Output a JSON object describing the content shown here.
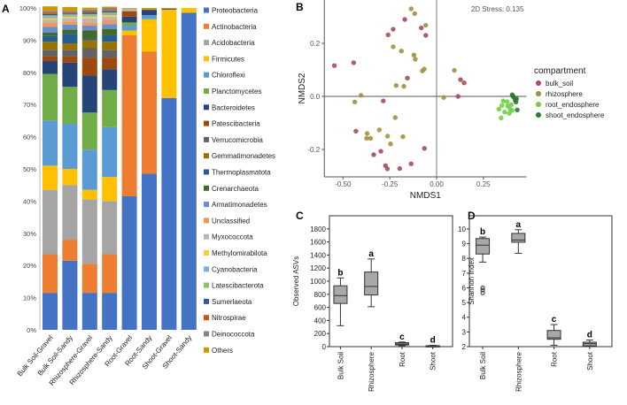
{
  "panel_labels": [
    "A",
    "B",
    "C",
    "D"
  ],
  "chart_data": [
    {
      "type": "bar",
      "stacked": true,
      "panel": "A",
      "ylim": [
        0,
        100
      ],
      "yticks": [
        "0%",
        "10%",
        "20%",
        "30%",
        "40%",
        "50%",
        "60%",
        "70%",
        "80%",
        "90%",
        "100%"
      ],
      "categories": [
        "Bulk Soil-Gravel",
        "Bulk Soil-Sandy",
        "Rhizosphere-Gravel",
        "Rhizosphere-Sandy",
        "Root-Gravel",
        "Root-Sandy",
        "Shoot-Gravel",
        "Shoot-Sandy"
      ],
      "legend_position": "right",
      "series": [
        {
          "name": "Proteobacteria",
          "color": "#4472C4",
          "values": [
            11.5,
            21.5,
            11.5,
            11.5,
            41.5,
            48.5,
            72,
            98.5
          ]
        },
        {
          "name": "Actinobacteria",
          "color": "#ED7D31",
          "values": [
            12,
            6.5,
            9,
            12,
            50,
            38,
            0,
            0
          ]
        },
        {
          "name": "Acidobacteria",
          "color": "#A5A5A5",
          "values": [
            20,
            17,
            20,
            16.5,
            0,
            0,
            0,
            0
          ]
        },
        {
          "name": "Firmicutes",
          "color": "#FFC000",
          "values": [
            7.5,
            5,
            3,
            7.5,
            1.5,
            10,
            27.5,
            1.5
          ]
        },
        {
          "name": "Chloroflexi",
          "color": "#5B9BD5",
          "values": [
            14,
            14,
            12.5,
            15.5,
            1.5,
            1.3,
            0,
            0
          ]
        },
        {
          "name": "Planctomycetes",
          "color": "#70AD47",
          "values": [
            14.5,
            11.5,
            11.5,
            11.5,
            1,
            0,
            0,
            0
          ]
        },
        {
          "name": "Bacteroidetes",
          "color": "#264478",
          "values": [
            4,
            7.5,
            11.5,
            6.5,
            1.8,
            1.5,
            0.3,
            0
          ]
        },
        {
          "name": "Patescibacteria",
          "color": "#9E480E",
          "values": [
            1.5,
            2,
            5.5,
            3.5,
            1.7,
            0.2,
            0,
            0
          ]
        },
        {
          "name": "Verrucomicrobia",
          "color": "#636363",
          "values": [
            2,
            2,
            3,
            2.5,
            0,
            0,
            0,
            0
          ]
        },
        {
          "name": "Gemmatimonadetes",
          "color": "#997300",
          "values": [
            2.5,
            2,
            2.5,
            2.5,
            0,
            0,
            0,
            0
          ]
        },
        {
          "name": "Thermoplasmatota",
          "color": "#255E91",
          "values": [
            1.8,
            3,
            0.5,
            2,
            0,
            0,
            0,
            0
          ]
        },
        {
          "name": "Crenarchaeota",
          "color": "#43682B",
          "values": [
            1,
            1.3,
            2.5,
            2,
            0,
            0,
            0,
            0
          ]
        },
        {
          "name": "Armatimonadetes",
          "color": "#698ED0",
          "values": [
            1.8,
            1.5,
            1.5,
            1.5,
            0,
            0,
            0,
            0
          ]
        },
        {
          "name": "Unclassified",
          "color": "#F1975A",
          "values": [
            1.4,
            1,
            1,
            1.3,
            0,
            0,
            0,
            0
          ]
        },
        {
          "name": "Myxococcota",
          "color": "#B7B7B7",
          "values": [
            0.8,
            1,
            1.3,
            1,
            0.8,
            0,
            0,
            0
          ]
        },
        {
          "name": "Methylomirabilota",
          "color": "#FFCD33",
          "values": [
            0.5,
            0.5,
            0.5,
            0.5,
            0,
            0,
            0,
            0
          ]
        },
        {
          "name": "Cyanobacteria",
          "color": "#7CAFDD",
          "values": [
            0.5,
            0.4,
            0.4,
            0.4,
            0,
            0,
            0,
            0
          ]
        },
        {
          "name": "Latescibacterota",
          "color": "#8CC168",
          "values": [
            0.4,
            0.3,
            0.4,
            0.4,
            0,
            0,
            0,
            0
          ]
        },
        {
          "name": "Sumerlaeota",
          "color": "#335AA1",
          "values": [
            0.4,
            0.3,
            0.4,
            0.4,
            0,
            0,
            0,
            0
          ]
        },
        {
          "name": "Nitrospirae",
          "color": "#C65911",
          "values": [
            0.4,
            0.3,
            0.4,
            0.4,
            0,
            0,
            0,
            0
          ]
        },
        {
          "name": "Deinococcota",
          "color": "#848484",
          "values": [
            0.6,
            0.5,
            0.6,
            0.6,
            0,
            0,
            0,
            0
          ]
        },
        {
          "name": "Others",
          "color": "#CC9A00",
          "values": [
            1.4,
            1.2,
            0.6,
            0.4,
            0.2,
            0.5,
            0.2,
            0
          ]
        }
      ]
    },
    {
      "type": "scatter",
      "panel": "B",
      "xlabel": "NMDS1",
      "ylabel": "NMDS2",
      "xlim": [
        -0.6,
        0.48
      ],
      "ylim": [
        -0.3,
        0.35
      ],
      "xticks": [
        -0.5,
        -0.25,
        0.0,
        0.25
      ],
      "xtick_labels": [
        "-0.50",
        "-0.25",
        "0.00",
        "0.25"
      ],
      "yticks": [
        -0.2,
        0.0,
        0.2
      ],
      "ytick_labels": [
        "-0.2",
        "0.0",
        "0.2"
      ],
      "annotation": "2D Stress: 0.135",
      "legend_title": "compartment",
      "legend_position": "right",
      "series": [
        {
          "name": "bulk_soil",
          "color": "#A84B5A",
          "points": [
            [
              -0.546,
              0.116
            ],
            [
              -0.443,
              0.127
            ],
            [
              -0.17,
              0.29
            ],
            [
              -0.232,
              0.253
            ],
            [
              -0.259,
              0.232
            ],
            [
              -0.082,
              0.258
            ],
            [
              -0.058,
              0.23
            ],
            [
              -0.156,
              0.069
            ],
            [
              0.128,
              0.063
            ],
            [
              0.147,
              0.051
            ],
            [
              0.115,
              0.0
            ],
            [
              -0.285,
              -0.017
            ],
            [
              -0.431,
              -0.131
            ],
            [
              -0.336,
              -0.22
            ],
            [
              -0.298,
              -0.207
            ],
            [
              -0.273,
              -0.261
            ],
            [
              -0.263,
              -0.273
            ],
            [
              -0.197,
              -0.272
            ],
            [
              -0.136,
              -0.254
            ],
            [
              -0.065,
              -0.196
            ]
          ]
        },
        {
          "name": "rhizosphere",
          "color": "#A39040",
          "points": [
            [
              -0.136,
              0.33
            ],
            [
              -0.117,
              0.312
            ],
            [
              -0.058,
              0.268
            ],
            [
              -0.232,
              0.187
            ],
            [
              -0.188,
              0.171
            ],
            [
              -0.121,
              0.156
            ],
            [
              -0.114,
              0.14
            ],
            [
              -0.076,
              0.096
            ],
            [
              -0.066,
              0.103
            ],
            [
              0.095,
              0.098
            ],
            [
              -0.216,
              0.041
            ],
            [
              -0.175,
              0.038
            ],
            [
              -0.404,
              0.004
            ],
            [
              -0.437,
              -0.021
            ],
            [
              0.038,
              -0.004
            ],
            [
              -0.221,
              -0.08
            ],
            [
              -0.306,
              -0.126
            ],
            [
              -0.371,
              -0.14
            ],
            [
              -0.353,
              -0.158
            ],
            [
              -0.374,
              -0.158
            ],
            [
              -0.262,
              -0.15
            ],
            [
              -0.18,
              -0.152
            ],
            [
              -0.246,
              -0.179
            ]
          ]
        },
        {
          "name": "root_endosphere",
          "color": "#6CD240",
          "points": [
            [
              0.333,
              -0.048
            ],
            [
              0.349,
              -0.034
            ],
            [
              0.364,
              -0.059
            ],
            [
              0.345,
              -0.081
            ],
            [
              0.38,
              -0.037
            ],
            [
              0.393,
              -0.048
            ],
            [
              0.388,
              -0.064
            ],
            [
              0.399,
              -0.031
            ],
            [
              0.377,
              -0.02
            ],
            [
              0.356,
              -0.017
            ],
            [
              0.404,
              -0.053
            ]
          ]
        },
        {
          "name": "shoot_endosphere",
          "color": "#2E7A2E",
          "points": [
            [
              0.404,
              0.006
            ],
            [
              0.412,
              -0.003
            ],
            [
              0.42,
              -0.014
            ],
            [
              0.424,
              -0.021
            ],
            [
              0.427,
              -0.009
            ],
            [
              0.408,
              0.001
            ],
            [
              0.431,
              -0.051
            ]
          ]
        }
      ]
    },
    {
      "type": "box",
      "panel": "C",
      "ylabel": "Observed ASVs",
      "ylim": [
        0,
        2000
      ],
      "yticks": [
        0,
        200,
        400,
        600,
        800,
        1000,
        1200,
        1400,
        1600,
        1800
      ],
      "categories": [
        "Bulk Soil",
        "Rhizosphere",
        "Root",
        "Shoot"
      ],
      "boxes": [
        {
          "min": 320,
          "q1": 660,
          "median": 780,
          "q3": 930,
          "max": 1050,
          "letter": "b"
        },
        {
          "min": 610,
          "q1": 790,
          "median": 920,
          "q3": 1140,
          "max": 1340,
          "letter": "a"
        },
        {
          "min": 15,
          "q1": 25,
          "median": 40,
          "q3": 60,
          "max": 70,
          "letter": "c"
        },
        {
          "min": 0,
          "q1": 5,
          "median": 10,
          "q3": 15,
          "max": 20,
          "letter": "d"
        }
      ]
    },
    {
      "type": "box",
      "panel": "D",
      "ylabel": "Shannon Index",
      "ylim": [
        2,
        10.9
      ],
      "yticks": [
        2,
        3,
        4,
        5,
        6,
        7,
        8,
        9,
        10
      ],
      "categories": [
        "Bulk Soil",
        "Rhizosphere",
        "Root",
        "Shoot"
      ],
      "boxes": [
        {
          "min": 7.75,
          "q1": 8.3,
          "median": 8.9,
          "q3": 9.35,
          "max": 9.45,
          "letter": "b",
          "outliers": [
            5.65,
            5.85,
            6.0
          ]
        },
        {
          "min": 8.35,
          "q1": 9.1,
          "median": 9.25,
          "q3": 9.7,
          "max": 9.95,
          "letter": "a"
        },
        {
          "min": 2.1,
          "q1": 2.5,
          "median": 2.6,
          "q3": 3.1,
          "max": 3.5,
          "letter": "c"
        },
        {
          "min": 2.0,
          "q1": 2.05,
          "median": 2.2,
          "q3": 2.3,
          "max": 2.45,
          "letter": "d"
        }
      ]
    }
  ]
}
